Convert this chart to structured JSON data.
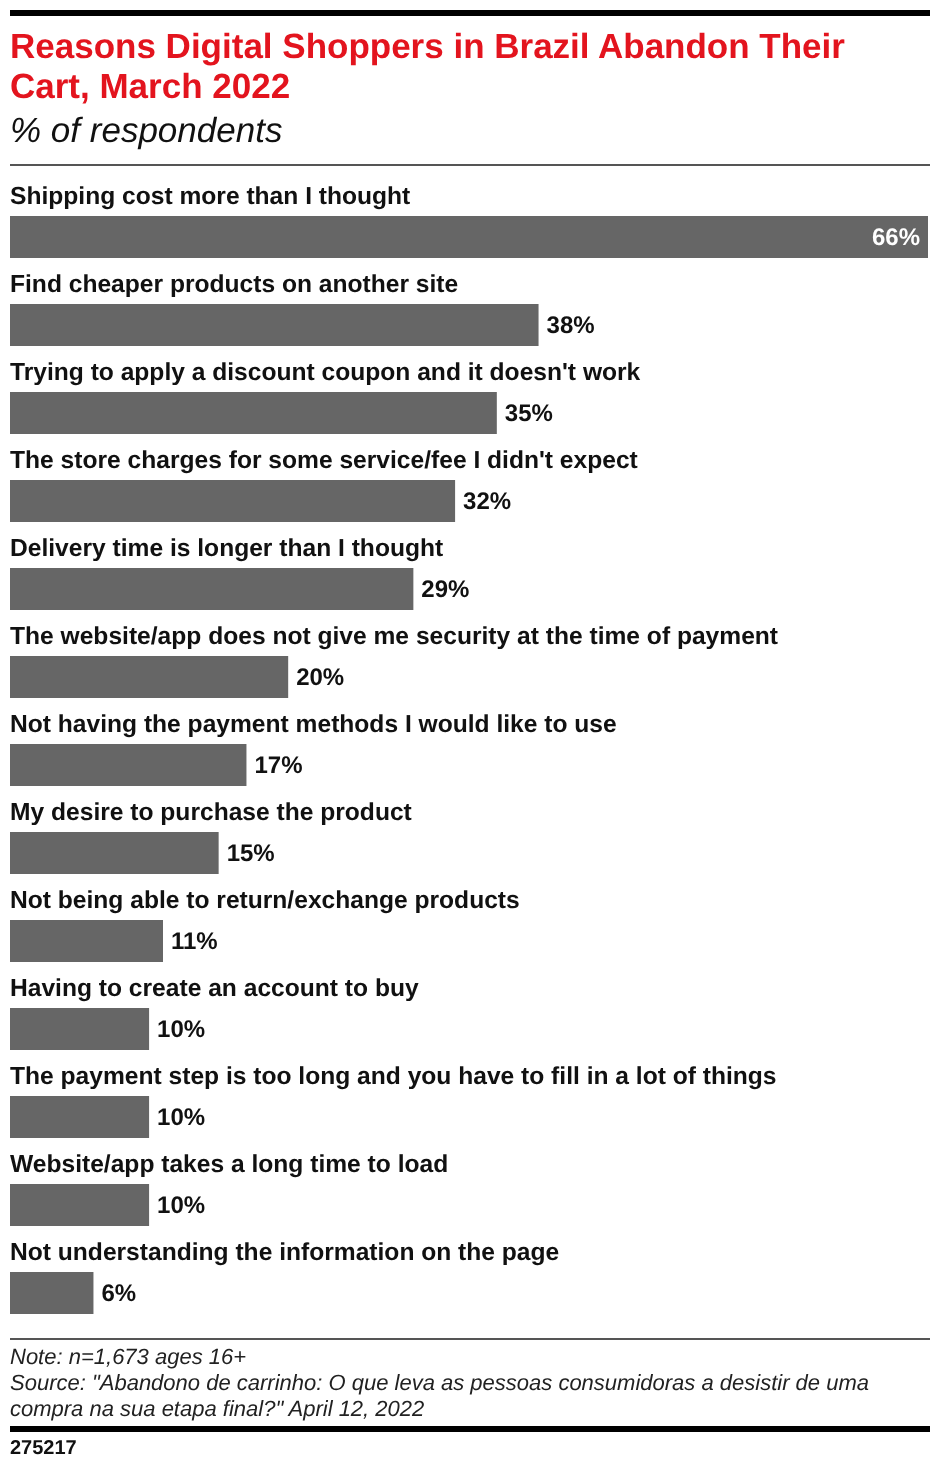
{
  "chart_data": {
    "type": "bar",
    "orientation": "horizontal",
    "title": "Reasons Digital Shoppers in Brazil Abandon Their Cart, March 2022",
    "subtitle": "% of respondents",
    "categories": [
      "Shipping cost more than I thought",
      "Find cheaper products on another site",
      "Trying to apply a discount coupon and it doesn't work",
      "The store charges for some service/fee I didn't expect",
      "Delivery time is longer than I thought",
      "The website/app does not give me security at the time of payment",
      "Not having the payment methods I would like to use",
      "My desire to purchase the product",
      "Not being able to return/exchange products",
      "Having to create an account to buy",
      "The payment step is too long and you have to fill in a lot of things",
      "Website/app takes a long time to load",
      "Not understanding the information on the page"
    ],
    "values": [
      66,
      38,
      35,
      32,
      29,
      20,
      17,
      15,
      11,
      10,
      10,
      10,
      6
    ],
    "value_labels": [
      "66%",
      "38%",
      "35%",
      "32%",
      "29%",
      "20%",
      "17%",
      "15%",
      "11%",
      "10%",
      "10%",
      "10%",
      "6%"
    ],
    "color": "#666666",
    "annotations": [
      "Note: n=1,673 ages 16+",
      "Source: \"Abandono de carrinho: O que leva as pessoas consumidoras a desistir de uma compra na sua etapa final?\" April 12, 2022",
      "275217"
    ]
  }
}
